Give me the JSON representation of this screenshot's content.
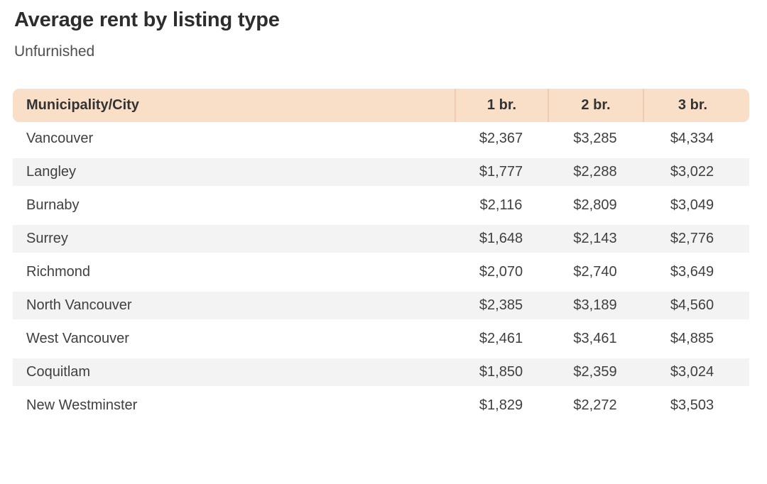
{
  "page": {
    "title": "Average rent by listing type",
    "subtitle": "Unfurnished"
  },
  "colors": {
    "header_bg": "#f9dfc8",
    "header_divider": "#efccb1",
    "stripe_bg": "#f3f3f3",
    "title_text": "#2d2d2d",
    "body_text": "#3f3f3f"
  },
  "chart_data": {
    "type": "table",
    "title": "Average rent by listing type",
    "subtitle": "Unfurnished",
    "columns": [
      "Municipality/City",
      "1 br.",
      "2 br.",
      "3 br."
    ],
    "rows": [
      {
        "city": "Vancouver",
        "values": [
          "$2,367",
          "$3,285",
          "$4,334"
        ]
      },
      {
        "city": "Langley",
        "values": [
          "$1,777",
          "$2,288",
          "$3,022"
        ]
      },
      {
        "city": "Burnaby",
        "values": [
          "$2,116",
          "$2,809",
          "$3,049"
        ]
      },
      {
        "city": "Surrey",
        "values": [
          "$1,648",
          "$2,143",
          "$2,776"
        ]
      },
      {
        "city": "Richmond",
        "values": [
          "$2,070",
          "$2,740",
          "$3,649"
        ]
      },
      {
        "city": "North Vancouver",
        "values": [
          "$2,385",
          "$3,189",
          "$4,560"
        ]
      },
      {
        "city": "West Vancouver",
        "values": [
          "$2,461",
          "$3,461",
          "$4,885"
        ]
      },
      {
        "city": "Coquitlam",
        "values": [
          "$1,850",
          "$2,359",
          "$3,024"
        ]
      },
      {
        "city": "New Westminster",
        "values": [
          "$1,829",
          "$2,272",
          "$3,503"
        ]
      }
    ],
    "numeric_series": [
      {
        "name": "1 br.",
        "values": [
          2367,
          1777,
          2116,
          1648,
          2070,
          2385,
          2461,
          1850,
          1829
        ]
      },
      {
        "name": "2 br.",
        "values": [
          3285,
          2288,
          2809,
          2143,
          2740,
          3189,
          3461,
          2359,
          2272
        ]
      },
      {
        "name": "3 br.",
        "values": [
          4334,
          3022,
          3049,
          2776,
          3649,
          4560,
          4885,
          3024,
          3503
        ]
      }
    ]
  }
}
